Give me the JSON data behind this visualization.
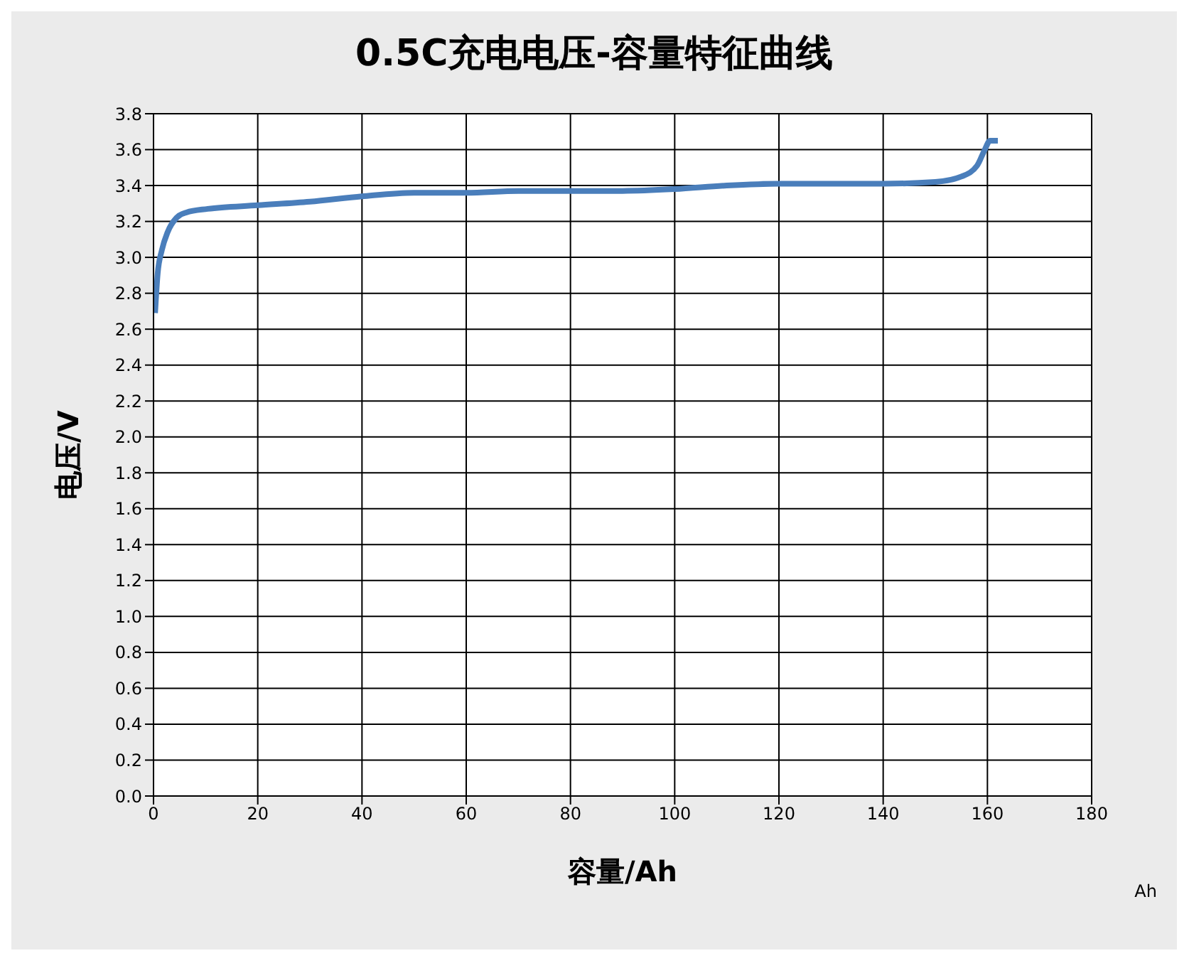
{
  "chart_data": {
    "type": "line",
    "title": "0.5C充电电压-容量特征曲线",
    "xlabel": "容量/Ah",
    "ylabel": "电压/V",
    "x": [
      0.3,
      0.8,
      1.6,
      2.7,
      4.4,
      6.3,
      10.4,
      20,
      30,
      40,
      50,
      60,
      70,
      80,
      90,
      100,
      110,
      120,
      130,
      140,
      150,
      155,
      158,
      159.5,
      160.5,
      162
    ],
    "series": [
      {
        "color": "#4a7ebb",
        "values": [
          2.69,
          2.91,
          3.04,
          3.14,
          3.22,
          3.25,
          3.27,
          3.29,
          3.31,
          3.34,
          3.36,
          3.36,
          3.37,
          3.37,
          3.37,
          3.38,
          3.4,
          3.41,
          3.41,
          3.41,
          3.42,
          3.45,
          3.51,
          3.6,
          3.65,
          3.65
        ]
      }
    ],
    "xlim": [
      0,
      180
    ],
    "xticks": [
      0,
      20,
      40,
      60,
      80,
      100,
      120,
      140,
      160,
      180
    ],
    "ylim": [
      0,
      3.8
    ],
    "yticks": [
      {
        "value": 0,
        "label": "0.0"
      },
      0.2,
      0.4,
      0.6,
      0.8,
      {
        "value": 1,
        "label": "1.0"
      },
      1.2,
      1.4,
      1.6,
      1.8,
      {
        "value": 2,
        "label": "2.0"
      },
      2.2,
      2.4,
      2.6,
      2.8,
      {
        "value": 3,
        "label": "3.0"
      },
      3.2,
      3.4,
      3.6,
      3.8
    ],
    "annotations": [
      "Ah"
    ],
    "grid": true,
    "marker": "none",
    "line_style": "solid"
  }
}
